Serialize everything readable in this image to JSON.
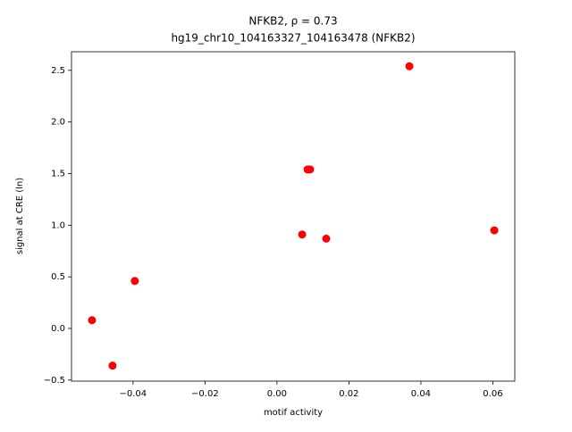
{
  "chart_data": {
    "type": "scatter",
    "title": "NFKB2, ρ = 0.73",
    "subtitle": "hg19_chr10_104163327_104163478 (NFKB2)",
    "x_label": "motif activity",
    "y_label": "signal at CRE (ln)",
    "color": "#ff0000",
    "x": [
      -0.0514,
      -0.0457,
      -0.0395,
      0.007,
      0.0085,
      0.0092,
      0.0137,
      0.0368,
      0.0604
    ],
    "values": [
      0.08,
      -0.36,
      0.46,
      0.91,
      1.54,
      1.54,
      0.87,
      2.54,
      0.95
    ],
    "xlim": [
      -0.0571,
      0.0661
    ],
    "ylim": [
      -0.51,
      2.68
    ],
    "xticks": [
      {
        "value": -0.04,
        "label": "−0.04"
      },
      {
        "value": -0.02,
        "label": "−0.02"
      },
      {
        "value": 0,
        "label": "0.00"
      },
      {
        "value": 0.02,
        "label": "0.02"
      },
      {
        "value": 0.04,
        "label": "0.04"
      },
      {
        "value": 0.06,
        "label": "0.06"
      }
    ],
    "yticks": [
      {
        "value": -0.5,
        "label": "−0.5"
      },
      {
        "value": 0,
        "label": "0.0"
      },
      0.5,
      {
        "value": 1,
        "label": "1.0"
      },
      1.5,
      {
        "value": 2,
        "label": "2.0"
      },
      2.5
    ]
  }
}
